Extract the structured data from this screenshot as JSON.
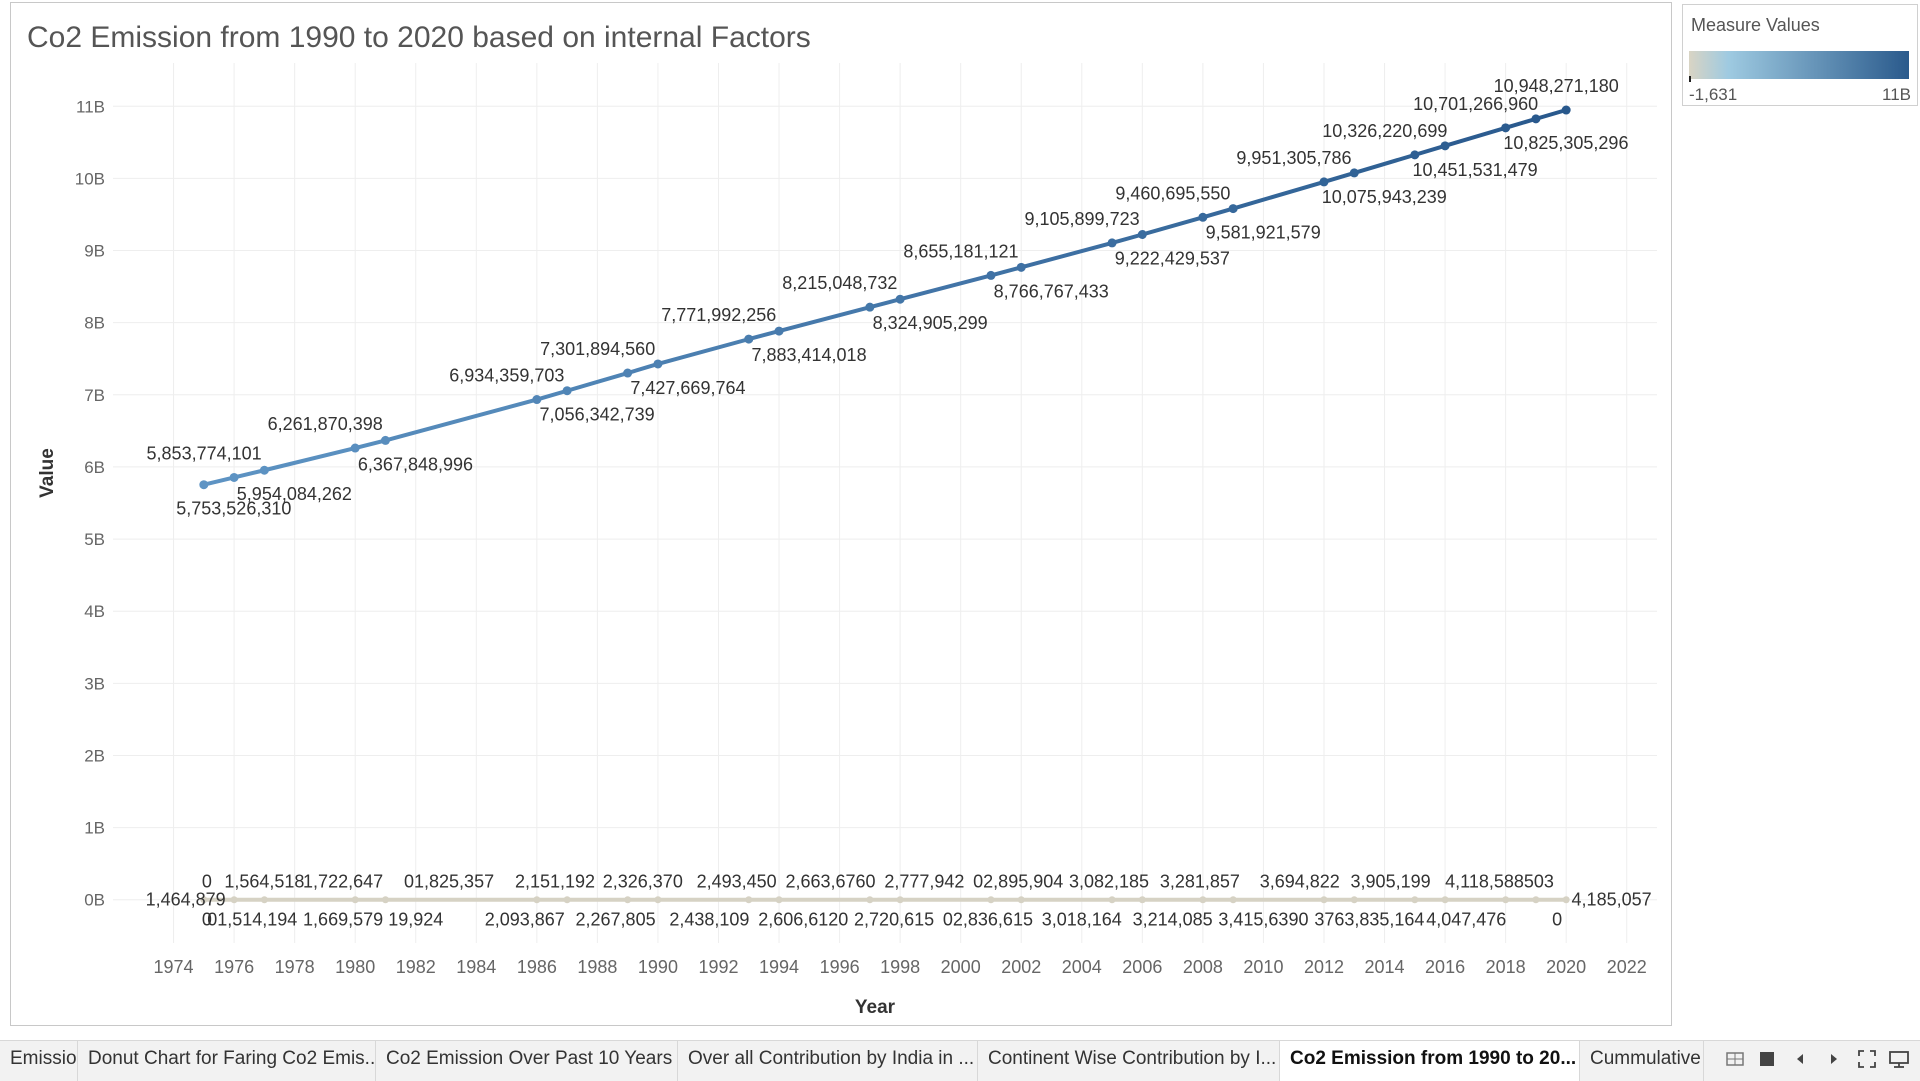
{
  "sheet": {
    "title": "Co2 Emission from 1990 to 2020 based on internal Factors"
  },
  "legend": {
    "title": "Measure Values",
    "min_label": "-1,631",
    "max_label": "11B",
    "colors": [
      "#d9d4c4",
      "#9ecae1",
      "#2a5a8c"
    ]
  },
  "tabs": [
    {
      "label": "Emission",
      "active": false
    },
    {
      "label": "Donut Chart for Faring Co2 Emis...",
      "active": false
    },
    {
      "label": "Co2 Emission Over Past 10 Years",
      "active": false
    },
    {
      "label": "Over all Contribution by India in ...",
      "active": false
    },
    {
      "label": "Continent Wise Contribution by I...",
      "active": false
    },
    {
      "label": "Co2 Emission from 1990 to 20...",
      "active": true
    },
    {
      "label": "Cummulative",
      "active": false
    }
  ],
  "nav_icons": [
    "grid-view-icon",
    "sheet-view-icon",
    "prev-tab-icon",
    "next-tab-icon",
    "fullscreen-icon",
    "presentation-icon"
  ],
  "chart_data": {
    "type": "line",
    "title": "Co2 Emission from 1990 to 2020 based on internal Factors",
    "xlabel": "Year",
    "ylabel": "Value",
    "xlim": [
      1972,
      2023
    ],
    "ylim": [
      -0.6,
      11.6
    ],
    "x_ticks": [
      "1974",
      "1976",
      "1978",
      "1980",
      "1982",
      "1984",
      "1986",
      "1988",
      "1990",
      "1992",
      "1994",
      "1996",
      "1998",
      "2000",
      "2002",
      "2004",
      "2006",
      "2008",
      "2010",
      "2012",
      "2014",
      "2016",
      "2018",
      "2020",
      "2022"
    ],
    "y_ticks": [
      "0B",
      "1B",
      "2B",
      "3B",
      "4B",
      "5B",
      "6B",
      "7B",
      "8B",
      "9B",
      "10B",
      "11B"
    ],
    "grid": true,
    "series": [
      {
        "color": "#4e79a7",
        "points": [
          {
            "x": 1975,
            "y": 5753526310,
            "label": "5,753,526,310",
            "pos": "below"
          },
          {
            "x": 1976,
            "y": 5853774101,
            "label": "5,853,774,101",
            "pos": "above"
          },
          {
            "x": 1977,
            "y": 5954084262,
            "label": "5,954,084,262",
            "pos": "below"
          },
          {
            "x": 1980,
            "y": 6261870398,
            "label": "6,261,870,398",
            "pos": "above"
          },
          {
            "x": 1981,
            "y": 6367848996,
            "label": "6,367,848,996",
            "pos": "below"
          },
          {
            "x": 1986,
            "y": 6934359703,
            "label": "6,934,359,703",
            "pos": "above"
          },
          {
            "x": 1987,
            "y": 7056342739,
            "label": "7,056,342,739",
            "pos": "below"
          },
          {
            "x": 1989,
            "y": 7301894560,
            "label": "7,301,894,560",
            "pos": "above"
          },
          {
            "x": 1990,
            "y": 7427669764,
            "label": "7,427,669,764",
            "pos": "below"
          },
          {
            "x": 1993,
            "y": 7771992256,
            "label": "7,771,992,256",
            "pos": "above"
          },
          {
            "x": 1994,
            "y": 7883414018,
            "label": "7,883,414,018",
            "pos": "below"
          },
          {
            "x": 1997,
            "y": 8215048732,
            "label": "8,215,048,732",
            "pos": "above"
          },
          {
            "x": 1998,
            "y": 8324905299,
            "label": "8,324,905,299",
            "pos": "below"
          },
          {
            "x": 2001,
            "y": 8655181121,
            "label": "8,655,181,121",
            "pos": "above"
          },
          {
            "x": 2002,
            "y": 8766767433,
            "label": "8,766,767,433",
            "pos": "below"
          },
          {
            "x": 2005,
            "y": 9105899723,
            "label": "9,105,899,723",
            "pos": "above"
          },
          {
            "x": 2006,
            "y": 9222429537,
            "label": "9,222,429,537",
            "pos": "below"
          },
          {
            "x": 2008,
            "y": 9460695550,
            "label": "9,460,695,550",
            "pos": "above"
          },
          {
            "x": 2009,
            "y": 9581921579,
            "label": "9,581,921,579",
            "pos": "below"
          },
          {
            "x": 2012,
            "y": 9951305786,
            "label": "9,951,305,786",
            "pos": "above"
          },
          {
            "x": 2013,
            "y": 10075943239,
            "label": "10,075,943,239",
            "pos": "below"
          },
          {
            "x": 2015,
            "y": 10326220699,
            "label": "10,326,220,699",
            "pos": "above"
          },
          {
            "x": 2016,
            "y": 10451531479,
            "label": "10,451,531,479",
            "pos": "below"
          },
          {
            "x": 2018,
            "y": 10701266960,
            "label": "10,701,266,960",
            "pos": "above"
          },
          {
            "x": 2019,
            "y": 10825305296,
            "label": "10,825,305,296",
            "pos": "below"
          },
          {
            "x": 2020,
            "y": 10948271180,
            "label": "10,948,271,180",
            "pos": "above"
          }
        ]
      },
      {
        "color": "#d6d2c4",
        "points": [
          {
            "x": 1975,
            "y": 0
          },
          {
            "x": 1976,
            "y": 0
          },
          {
            "x": 1977,
            "y": 0
          },
          {
            "x": 1980,
            "y": 0
          },
          {
            "x": 1981,
            "y": 0
          },
          {
            "x": 1986,
            "y": 0
          },
          {
            "x": 1987,
            "y": 0
          },
          {
            "x": 1989,
            "y": 0
          },
          {
            "x": 1990,
            "y": 0
          },
          {
            "x": 1993,
            "y": 0
          },
          {
            "x": 1994,
            "y": 0
          },
          {
            "x": 1997,
            "y": 0
          },
          {
            "x": 1998,
            "y": 0
          },
          {
            "x": 2001,
            "y": 0
          },
          {
            "x": 2002,
            "y": 0
          },
          {
            "x": 2005,
            "y": 0
          },
          {
            "x": 2006,
            "y": 0
          },
          {
            "x": 2008,
            "y": 0
          },
          {
            "x": 2009,
            "y": 0
          },
          {
            "x": 2012,
            "y": 0
          },
          {
            "x": 2013,
            "y": 0
          },
          {
            "x": 2015,
            "y": 0
          },
          {
            "x": 2016,
            "y": 0
          },
          {
            "x": 2018,
            "y": 0
          },
          {
            "x": 2019,
            "y": 0
          },
          {
            "x": 2020,
            "y": 0
          }
        ]
      }
    ],
    "bottom_labels": [
      {
        "text": "1,464,879",
        "x": 1974.4,
        "row": "middle"
      },
      {
        "text": "0",
        "x": 1975.1,
        "row": "above"
      },
      {
        "text": "0",
        "x": 1975.1,
        "row": "below"
      },
      {
        "text": "1,564,518",
        "x": 1977.0,
        "row": "above"
      },
      {
        "text": "01,514,194",
        "x": 1976.6,
        "row": "below"
      },
      {
        "text": "1,722,647",
        "x": 1979.6,
        "row": "above"
      },
      {
        "text": "1,669,579",
        "x": 1979.6,
        "row": "below"
      },
      {
        "text": "01,825,357",
        "x": 1983.1,
        "row": "above"
      },
      {
        "text": "19,924",
        "x": 1982.0,
        "row": "below"
      },
      {
        "text": "2,151,192",
        "x": 1986.6,
        "row": "above"
      },
      {
        "text": "2,093,867",
        "x": 1985.6,
        "row": "below"
      },
      {
        "text": "2,326,370",
        "x": 1989.5,
        "row": "above"
      },
      {
        "text": "2,267,805",
        "x": 1988.6,
        "row": "below"
      },
      {
        "text": "2,493,450",
        "x": 1992.6,
        "row": "above"
      },
      {
        "text": "2,438,109",
        "x": 1991.7,
        "row": "below"
      },
      {
        "text": "2,663,6760",
        "x": 1995.7,
        "row": "above"
      },
      {
        "text": "2,606,6120",
        "x": 1994.8,
        "row": "below"
      },
      {
        "text": "2,777,942",
        "x": 1998.8,
        "row": "above"
      },
      {
        "text": "2,720,615",
        "x": 1997.8,
        "row": "below"
      },
      {
        "text": "02,895,904",
        "x": 2001.9,
        "row": "above"
      },
      {
        "text": "02,836,615",
        "x": 2000.9,
        "row": "below"
      },
      {
        "text": "3,082,185",
        "x": 2004.9,
        "row": "above"
      },
      {
        "text": "3,018,164",
        "x": 2004.0,
        "row": "below"
      },
      {
        "text": "3,281,857",
        "x": 2007.9,
        "row": "above"
      },
      {
        "text": "3,214,085",
        "x": 2007.0,
        "row": "below"
      },
      {
        "text": "3,694,822",
        "x": 2011.2,
        "row": "above"
      },
      {
        "text": "3,415,6390",
        "x": 2010.0,
        "row": "below"
      },
      {
        "text": "3,905,199",
        "x": 2014.2,
        "row": "above"
      },
      {
        "text": "3763,835,164",
        "x": 2013.5,
        "row": "below"
      },
      {
        "text": "4,118,588503",
        "x": 2017.8,
        "row": "above"
      },
      {
        "text": "4,047,476",
        "x": 2016.7,
        "row": "below"
      },
      {
        "text": "4,185,057",
        "x": 2021.5,
        "row": "middle"
      },
      {
        "text": "0",
        "x": 2019.7,
        "row": "below"
      }
    ]
  }
}
